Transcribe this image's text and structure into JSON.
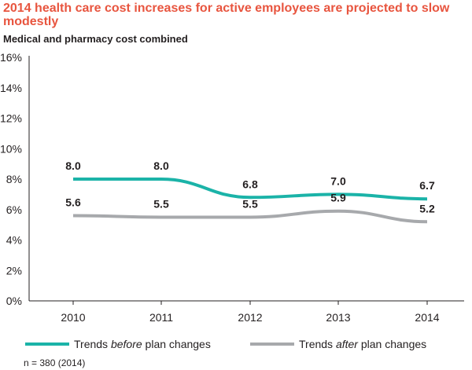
{
  "header": {
    "title": "2014 health care cost increases for active employees are projected to slow modestly",
    "subtitle": "Medical and pharmacy cost combined"
  },
  "colors": {
    "title": "#e8553f",
    "before": "#1bb3a8",
    "after": "#a7a9ac",
    "axis": "#231f20"
  },
  "chart_data": {
    "type": "line",
    "x": [
      "2010",
      "2011",
      "2012",
      "2013",
      "2014"
    ],
    "y_ticks": [
      "0%",
      "2%",
      "4%",
      "6%",
      "8%",
      "10%",
      "12%",
      "14%",
      "16%"
    ],
    "ylim": [
      0,
      16
    ],
    "series": [
      {
        "legend_parts": [
          "Trends ",
          "before",
          " plan changes"
        ],
        "values": [
          8.0,
          8.0,
          6.8,
          7.0,
          6.7
        ],
        "labels": [
          "8.0",
          "8.0",
          "6.8",
          "7.0",
          "6.7"
        ],
        "color": "#1bb3a8"
      },
      {
        "legend_parts": [
          "Trends ",
          "after",
          " plan changes"
        ],
        "values": [
          5.6,
          5.5,
          5.5,
          5.9,
          5.2
        ],
        "labels": [
          "5.6",
          "5.5",
          "5.5",
          "5.9",
          "5.2"
        ],
        "color": "#a7a9ac"
      }
    ],
    "grid": false,
    "legend_position": "bottom"
  },
  "footnote": "n = 380 (2014)"
}
